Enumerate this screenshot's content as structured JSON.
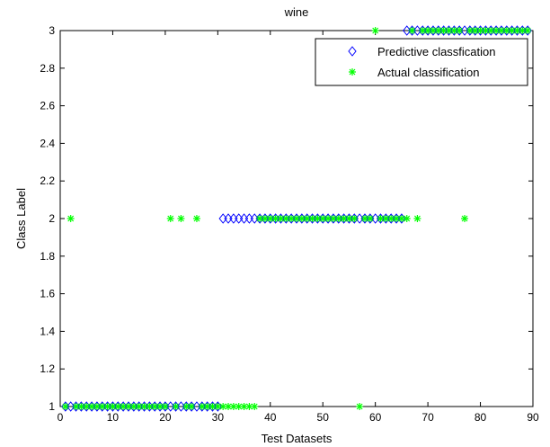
{
  "chart_data": {
    "type": "scatter",
    "title": "wine",
    "xlabel": "Test Datasets",
    "ylabel": "Class Label",
    "xlim": [
      0,
      90
    ],
    "ylim": [
      1,
      3
    ],
    "x_ticks": [
      0,
      10,
      20,
      30,
      40,
      50,
      60,
      70,
      80,
      90
    ],
    "y_ticks": [
      1,
      1.2,
      1.4,
      1.6,
      1.8,
      2,
      2.2,
      2.4,
      2.6,
      2.8,
      3
    ],
    "x_tick_labels": [
      "0",
      "10",
      "20",
      "30",
      "40",
      "50",
      "60",
      "70",
      "80",
      "90"
    ],
    "y_tick_labels": [
      "1",
      "1.2",
      "1.4",
      "1.6",
      "1.8",
      "2",
      "2.2",
      "2.4",
      "2.6",
      "2.8",
      "3"
    ],
    "grid": false,
    "legend_position": "top-right",
    "series": [
      {
        "name": "Predictive classfication",
        "marker": "diamond",
        "color": "#0000ff",
        "x": [
          1,
          2,
          3,
          4,
          5,
          6,
          7,
          8,
          9,
          10,
          11,
          12,
          13,
          14,
          15,
          16,
          17,
          18,
          19,
          20,
          21,
          22,
          23,
          24,
          25,
          26,
          27,
          28,
          29,
          30,
          31,
          32,
          33,
          34,
          35,
          36,
          37,
          38,
          39,
          40,
          41,
          42,
          43,
          44,
          45,
          46,
          47,
          48,
          49,
          50,
          51,
          52,
          53,
          54,
          55,
          56,
          57,
          58,
          59,
          60,
          61,
          62,
          63,
          64,
          65,
          66,
          67,
          68,
          69,
          70,
          71,
          72,
          73,
          74,
          75,
          76,
          77,
          78,
          79,
          80,
          81,
          82,
          83,
          84,
          85,
          86,
          87,
          88,
          89
        ],
        "y": [
          1,
          1,
          1,
          1,
          1,
          1,
          1,
          1,
          1,
          1,
          1,
          1,
          1,
          1,
          1,
          1,
          1,
          1,
          1,
          1,
          1,
          1,
          1,
          1,
          1,
          1,
          1,
          1,
          1,
          1,
          2,
          2,
          2,
          2,
          2,
          2,
          2,
          2,
          2,
          2,
          2,
          2,
          2,
          2,
          2,
          2,
          2,
          2,
          2,
          2,
          2,
          2,
          2,
          2,
          2,
          2,
          2,
          2,
          2,
          2,
          2,
          2,
          2,
          2,
          2,
          3,
          3,
          3,
          3,
          3,
          3,
          3,
          3,
          3,
          3,
          3,
          3,
          3,
          3,
          3,
          3,
          3,
          3,
          3,
          3,
          3,
          3,
          3,
          3
        ]
      },
      {
        "name": "Actual classification",
        "marker": "asterisk",
        "color": "#00ff00",
        "x": [
          1,
          2,
          3,
          4,
          5,
          6,
          7,
          8,
          9,
          10,
          11,
          12,
          13,
          14,
          15,
          16,
          17,
          18,
          19,
          20,
          21,
          22,
          23,
          24,
          25,
          26,
          27,
          28,
          29,
          30,
          31,
          32,
          33,
          34,
          35,
          36,
          37,
          38,
          39,
          40,
          41,
          42,
          43,
          44,
          45,
          46,
          47,
          48,
          49,
          50,
          51,
          52,
          53,
          54,
          55,
          56,
          57,
          58,
          59,
          60,
          61,
          62,
          63,
          64,
          65,
          66,
          67,
          68,
          69,
          70,
          71,
          72,
          73,
          74,
          75,
          76,
          77,
          78,
          79,
          80,
          81,
          82,
          83,
          84,
          85,
          86,
          87,
          88,
          89
        ],
        "y": [
          1,
          2,
          1,
          1,
          1,
          1,
          1,
          1,
          1,
          1,
          1,
          1,
          1,
          1,
          1,
          1,
          1,
          1,
          1,
          1,
          2,
          1,
          2,
          1,
          1,
          2,
          1,
          1,
          1,
          1,
          1,
          1,
          1,
          1,
          1,
          1,
          1,
          2,
          2,
          2,
          2,
          2,
          2,
          2,
          2,
          2,
          2,
          2,
          2,
          2,
          2,
          2,
          2,
          2,
          2,
          2,
          1,
          2,
          2,
          3,
          2,
          2,
          2,
          2,
          2,
          2,
          3,
          2,
          3,
          3,
          3,
          3,
          3,
          3,
          3,
          3,
          2,
          3,
          3,
          3,
          3,
          3,
          3,
          3,
          3,
          3,
          3,
          3,
          3
        ]
      }
    ]
  }
}
